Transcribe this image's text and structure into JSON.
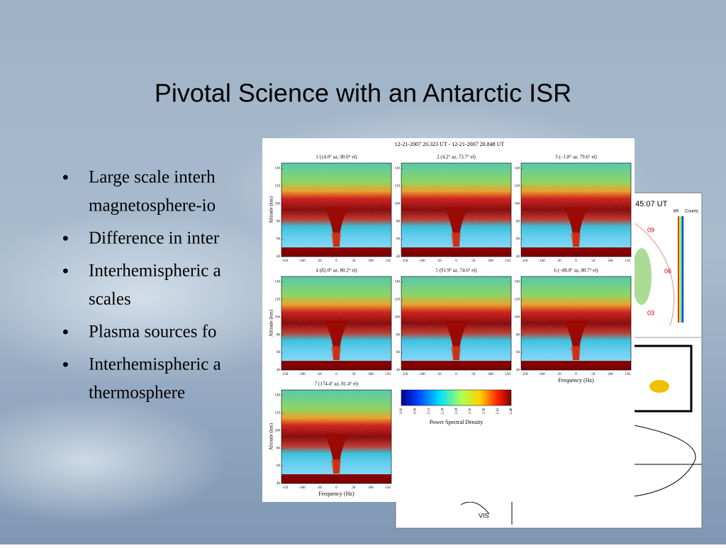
{
  "slide": {
    "title": "Pivotal Science with an Antarctic ISR",
    "bullets": [
      [
        "Large scale interh",
        "magnetosphere-io"
      ],
      [
        "Difference in inter"
      ],
      [
        "Interhemispheric a",
        "scales"
      ],
      [
        "Plasma sources fo"
      ],
      [
        "Interhemispheric a",
        "thermosphere"
      ]
    ]
  },
  "figure": {
    "title": "12-21-2007 20.323 UT - 12-21-2007 20.848 UT",
    "panels": [
      "1 (14.0° az, 90.0° el)",
      "2 (4.2° az, 73.7° el)",
      "3 (−1.8° az, 79.6° el)",
      "4 (82.0° az, 80.2° el)",
      "5 (91.9° az, 74.6° el)",
      "6 (−88.8° az, 80.7° el)",
      "7 (174.4° az, 81.4° el)"
    ],
    "y_label": "Altitude (km)",
    "x_label": "Frequency (Hz)",
    "yticks": [
      40,
      60,
      80,
      100,
      120,
      140
    ],
    "xticks": [
      -150,
      -100,
      -50,
      0,
      50,
      100,
      150
    ],
    "colorbar": {
      "label": "Power Spectral Density",
      "ticks": [
        "2.00",
        "2.06",
        "2.12",
        "2.18",
        "2.24",
        "2.30",
        "2.36",
        "2.42",
        "2.48"
      ]
    }
  },
  "inset": {
    "time": ":45:07 UT",
    "units": [
      "kR",
      "Counts"
    ],
    "hours": [
      "09",
      "06",
      "03"
    ],
    "instrument": "VIS"
  }
}
